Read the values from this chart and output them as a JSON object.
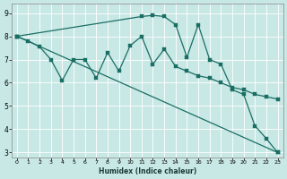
{
  "title": "",
  "xlabel": "Humidex (Indice chaleur)",
  "ylabel": "",
  "bg_color": "#c8e8e5",
  "grid_color": "#b0d8d4",
  "line_color": "#1a6e64",
  "xlim": [
    -0.5,
    23.5
  ],
  "ylim": [
    2.8,
    9.4
  ],
  "yticks": [
    3,
    4,
    5,
    6,
    7,
    8,
    9
  ],
  "xticks": [
    0,
    1,
    2,
    3,
    4,
    5,
    6,
    7,
    8,
    9,
    10,
    11,
    12,
    13,
    14,
    15,
    16,
    17,
    18,
    19,
    20,
    21,
    22,
    23
  ],
  "line1_x": [
    0,
    23
  ],
  "line1_y": [
    8.0,
    3.0
  ],
  "line2_x": [
    0,
    1,
    2,
    3,
    4,
    5,
    6,
    7,
    8,
    9,
    10,
    11,
    12,
    13,
    14,
    15,
    16,
    17,
    18,
    19,
    20,
    21,
    22,
    23
  ],
  "line2_y": [
    8.0,
    7.8,
    7.55,
    7.0,
    6.1,
    7.0,
    7.0,
    6.2,
    7.3,
    6.5,
    7.6,
    8.0,
    6.8,
    7.45,
    6.7,
    6.5,
    6.3,
    6.2,
    6.0,
    5.8,
    5.7,
    5.5,
    5.4,
    5.3
  ],
  "line3_x": [
    0,
    11,
    12,
    13,
    14,
    15,
    16,
    17,
    18,
    19,
    20,
    21,
    22,
    23
  ],
  "line3_y": [
    8.0,
    8.85,
    8.9,
    8.85,
    8.5,
    7.1,
    8.5,
    7.0,
    6.8,
    5.7,
    5.5,
    4.15,
    3.6,
    3.0
  ]
}
